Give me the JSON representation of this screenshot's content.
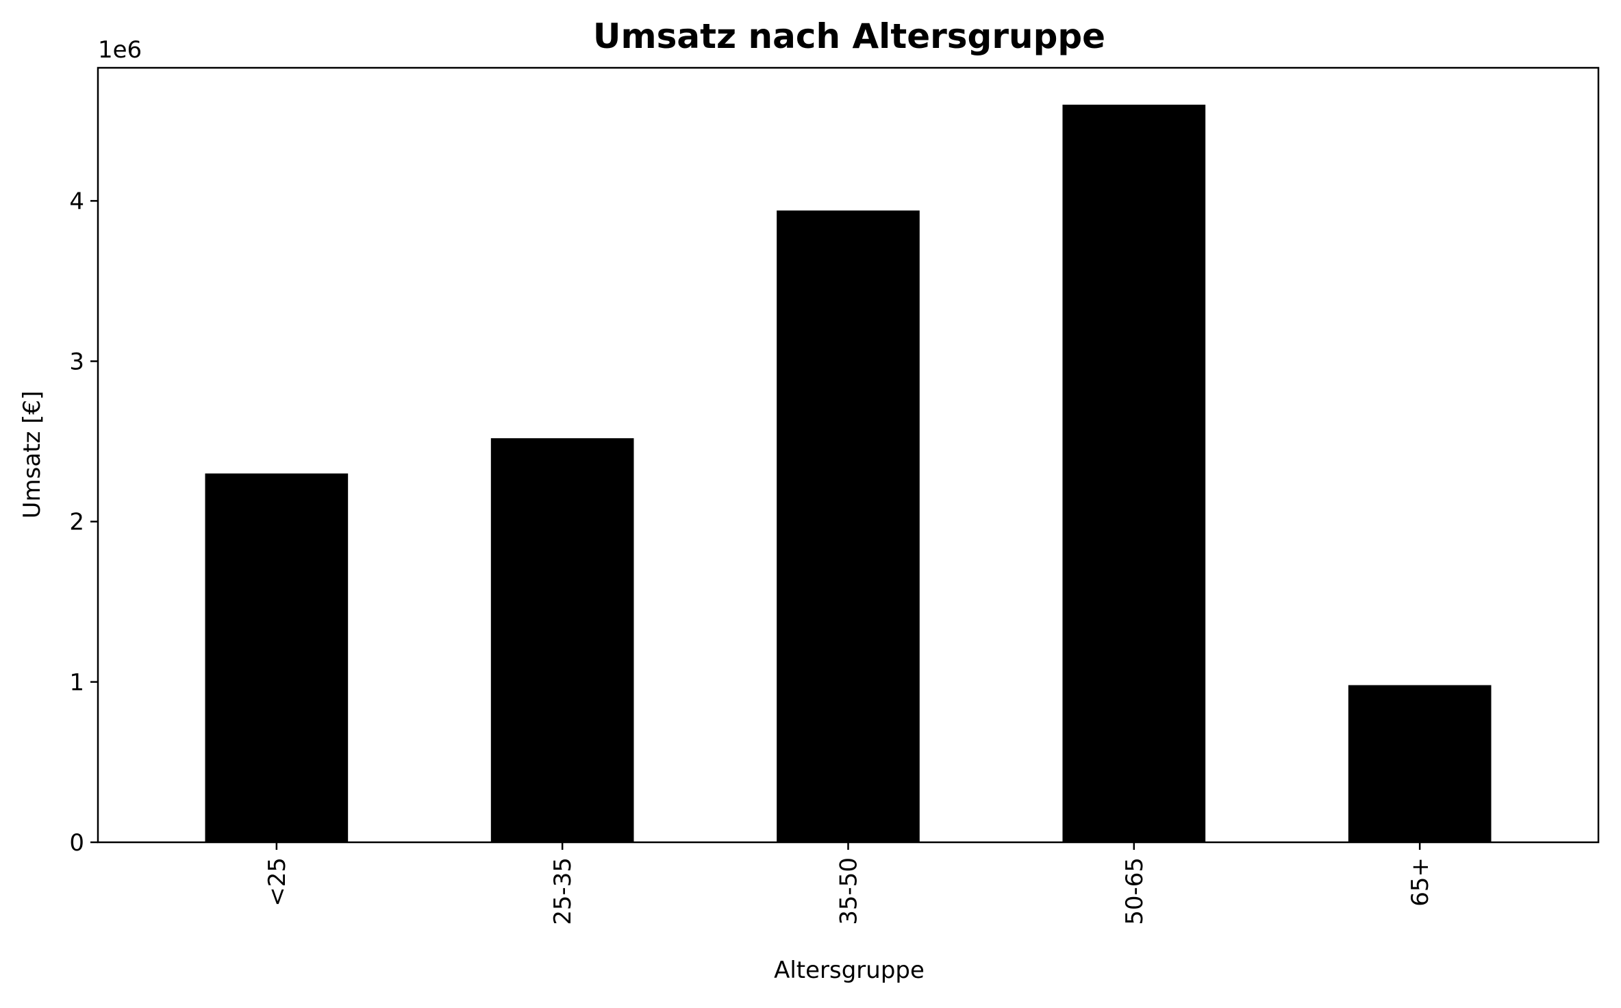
{
  "chart_data": {
    "type": "bar",
    "title": "Umsatz nach Altersgruppe",
    "xlabel": "Altersgruppe",
    "ylabel": "Umsatz [€]",
    "y_offset_label": "1e6",
    "categories": [
      "<25",
      "25-35",
      "35-50",
      "50-65",
      "65+"
    ],
    "values": [
      2300000,
      2520000,
      3940000,
      4600000,
      980000
    ],
    "ylim": [
      0,
      4830000
    ],
    "yticks": [
      0,
      1,
      2,
      3,
      4
    ],
    "ytick_scale": 1000000,
    "bar_color": "#000000",
    "grid": false,
    "legend": "none"
  }
}
